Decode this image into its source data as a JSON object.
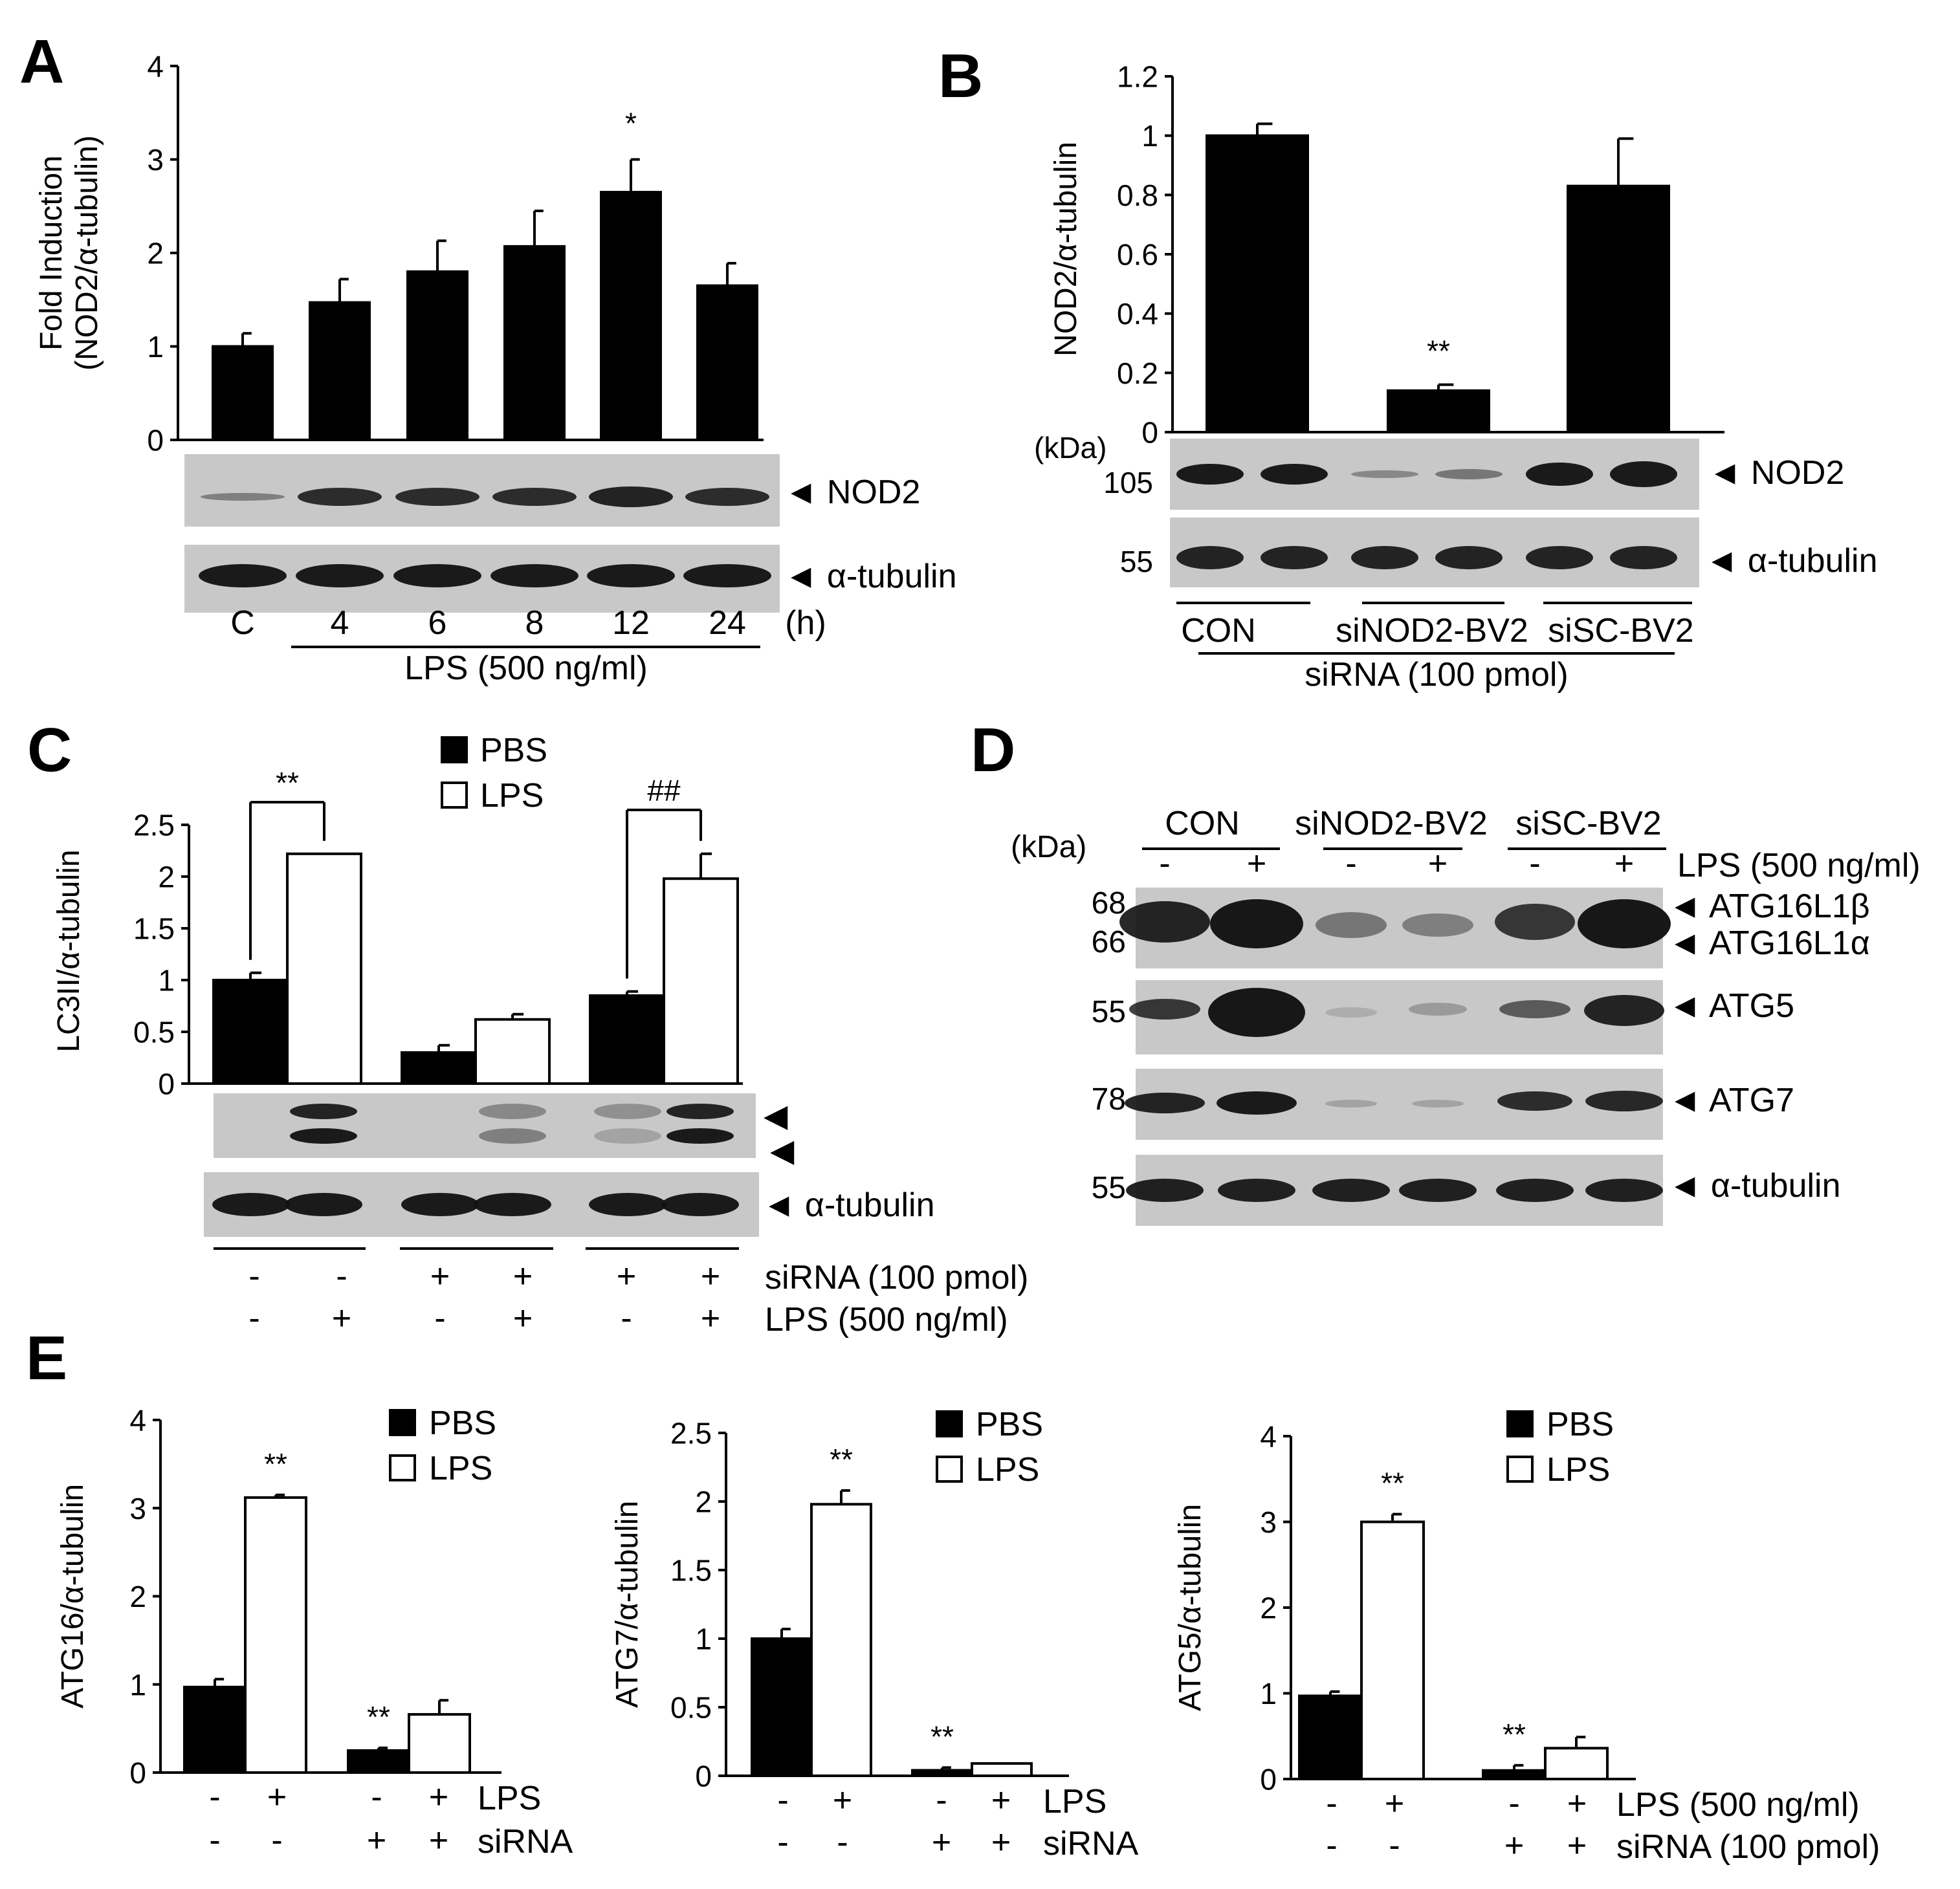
{
  "chart_data": [
    {
      "panel": "A",
      "type": "bar",
      "ylabel_lines": [
        "Fold Induction",
        "(NOD2/α-tubulin)"
      ],
      "ylim": [
        0,
        4
      ],
      "yticks": [
        "0",
        "1",
        "2",
        "3",
        "4"
      ],
      "categories": [
        "C",
        "4",
        "6",
        "8",
        "12",
        "24"
      ],
      "values": [
        1.0,
        1.47,
        1.8,
        2.07,
        2.65,
        1.65
      ],
      "errors": [
        0.14,
        0.25,
        0.33,
        0.38,
        0.35,
        0.24
      ],
      "sig": [
        "",
        "",
        "",
        "",
        "*",
        ""
      ],
      "unit_label": "(h)",
      "group_label": "LPS (500 ng/ml)",
      "blots": [
        "◄ NOD2",
        "◄ α-tubulin"
      ]
    },
    {
      "panel": "B",
      "type": "bar",
      "ylabel": "NOD2/α-tubulin",
      "ylim": [
        0,
        1.2
      ],
      "yticks": [
        "0",
        "0.2",
        "0.4",
        "0.6",
        "0.8",
        "1",
        "1.2"
      ],
      "values": [
        1.0,
        0.14,
        0.83
      ],
      "errors": [
        0.04,
        0.02,
        0.16
      ],
      "sig": [
        "",
        "**",
        ""
      ],
      "kda_label": "(kDa)",
      "kda": [
        "105",
        "55"
      ],
      "blots": [
        "◄ NOD2",
        "◄ α-tubulin"
      ],
      "categories": [
        "CON",
        "siNOD2-BV2",
        "siSC-BV2"
      ],
      "group_label": "siRNA (100 pmol)"
    },
    {
      "panel": "C",
      "type": "bar",
      "ylabel": "LC3II/α-tubulin",
      "ylim": [
        0,
        2.5
      ],
      "yticks": [
        "0",
        "0.5",
        "1",
        "1.5",
        "2",
        "2.5"
      ],
      "series": [
        {
          "name": "PBS",
          "values": [
            1.0,
            0.3,
            0.85
          ],
          "errors": [
            0.07,
            0.07,
            0.04
          ]
        },
        {
          "name": "LPS",
          "values": [
            2.22,
            0.62,
            1.98
          ],
          "errors": [
            0.0,
            0.05,
            0.24
          ]
        }
      ],
      "sig_brackets": [
        "**",
        "",
        "##"
      ],
      "row_labels": [
        "siRNA (100 pmol)",
        "LPS (500 ng/ml)"
      ],
      "row_marks": [
        [
          "-",
          "-",
          "+",
          "+",
          "+",
          "+"
        ],
        [
          "-",
          "+",
          "-",
          "+",
          "-",
          "+"
        ]
      ],
      "blots": [
        "◄ α-tubulin"
      ],
      "lc3_arrows": [
        "◄",
        "◄"
      ]
    },
    {
      "panel": "D",
      "type": "blot",
      "kda_label": "(kDa)",
      "groups": [
        "CON",
        "siNOD2-BV2",
        "siSC-BV2"
      ],
      "lps_marks": [
        "-",
        "+",
        "-",
        "+",
        "-",
        "+"
      ],
      "lps_label": "LPS (500 ng/ml)",
      "kda": [
        "68",
        "66",
        "55",
        "78",
        "55"
      ],
      "bands": [
        "◄ ATG16L1β",
        "◄ ATG16L1α",
        "◄ ATG5",
        "◄ ATG7",
        "◄ α-tubulin"
      ]
    },
    {
      "panel": "E",
      "type": "bar",
      "ylabel": "ATG16/α-tubulin",
      "ylim": [
        0,
        4
      ],
      "yticks": [
        "0",
        "1",
        "2",
        "3",
        "4"
      ],
      "series": [
        {
          "name": "PBS",
          "values": [
            0.97,
            0.25
          ],
          "errors": [
            0.09,
            0.03
          ]
        },
        {
          "name": "LPS",
          "values": [
            3.12,
            0.66
          ],
          "errors": [
            0.03,
            0.16
          ]
        }
      ],
      "sig": [
        "",
        "**",
        "**",
        ""
      ],
      "row_labels": [
        "LPS",
        "siRNA"
      ],
      "row_marks": [
        [
          "-",
          "+",
          "-",
          "+"
        ],
        [
          "-",
          "-",
          "+",
          "+"
        ]
      ]
    },
    {
      "panel": "E",
      "type": "bar",
      "ylabel": "ATG7/α-tubulin",
      "ylim": [
        0,
        2.5
      ],
      "yticks": [
        "0",
        "0.5",
        "1",
        "1.5",
        "2",
        "2.5"
      ],
      "series": [
        {
          "name": "PBS",
          "values": [
            1.0,
            0.04
          ],
          "errors": [
            0.07,
            0.02
          ]
        },
        {
          "name": "LPS",
          "values": [
            1.98,
            0.09
          ],
          "errors": [
            0.1,
            0.0
          ]
        }
      ],
      "sig": [
        "",
        "**",
        "**",
        ""
      ],
      "row_labels": [
        "LPS",
        "siRNA"
      ],
      "row_marks": [
        [
          "-",
          "+",
          "-",
          "+"
        ],
        [
          "-",
          "-",
          "+",
          "+"
        ]
      ]
    },
    {
      "panel": "E",
      "type": "bar",
      "ylabel": "ATG5/α-tubulin",
      "ylim": [
        0,
        4
      ],
      "yticks": [
        "0",
        "1",
        "2",
        "3",
        "4"
      ],
      "series": [
        {
          "name": "PBS",
          "values": [
            0.97,
            0.1
          ],
          "errors": [
            0.05,
            0.06
          ]
        },
        {
          "name": "LPS",
          "values": [
            3.0,
            0.36
          ],
          "errors": [
            0.09,
            0.13
          ]
        }
      ],
      "sig": [
        "",
        "**",
        "**",
        ""
      ],
      "row_labels": [
        "LPS (500 ng/ml)",
        "siRNA (100 pmol)"
      ],
      "row_marks": [
        [
          "-",
          "+",
          "-",
          "+"
        ],
        [
          "-",
          "-",
          "+",
          "+"
        ]
      ]
    }
  ]
}
